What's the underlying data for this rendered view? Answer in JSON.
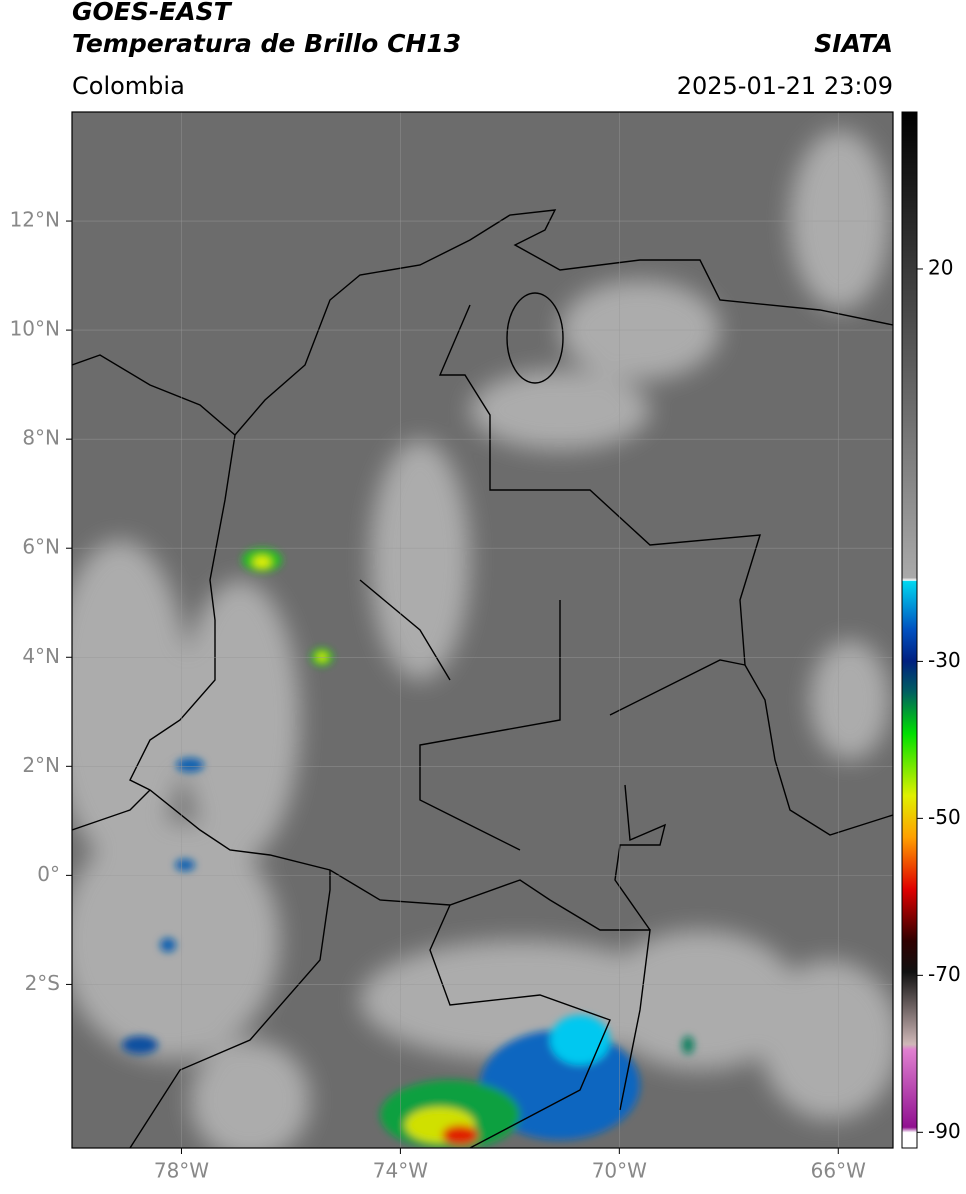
{
  "header": {
    "title": "GOES-EAST",
    "subtitle": "Temperatura de Brillo CH13",
    "source": "SIATA",
    "region": "Colombia",
    "timestamp": "2025-01-21 23:09"
  },
  "map": {
    "latlim": [
      -5,
      14
    ],
    "lonlim": [
      -80,
      -65
    ],
    "yticks": [
      {
        "value": 12,
        "label": "12°N"
      },
      {
        "value": 10,
        "label": "10°N"
      },
      {
        "value": 8,
        "label": "8°N"
      },
      {
        "value": 6,
        "label": "6°N"
      },
      {
        "value": 4,
        "label": "4°N"
      },
      {
        "value": 2,
        "label": "2°N"
      },
      {
        "value": 0,
        "label": "0°"
      },
      {
        "value": -2,
        "label": "2°S"
      }
    ],
    "xticks": [
      {
        "value": -78,
        "label": "78°W"
      },
      {
        "value": -74,
        "label": "74°W"
      },
      {
        "value": -70,
        "label": "70°W"
      },
      {
        "value": -66,
        "label": "66°W"
      }
    ],
    "grid": true
  },
  "colorbar": {
    "lim": [
      -92,
      40
    ],
    "ticks": [
      20,
      -30,
      -50,
      -70,
      -90
    ]
  }
}
